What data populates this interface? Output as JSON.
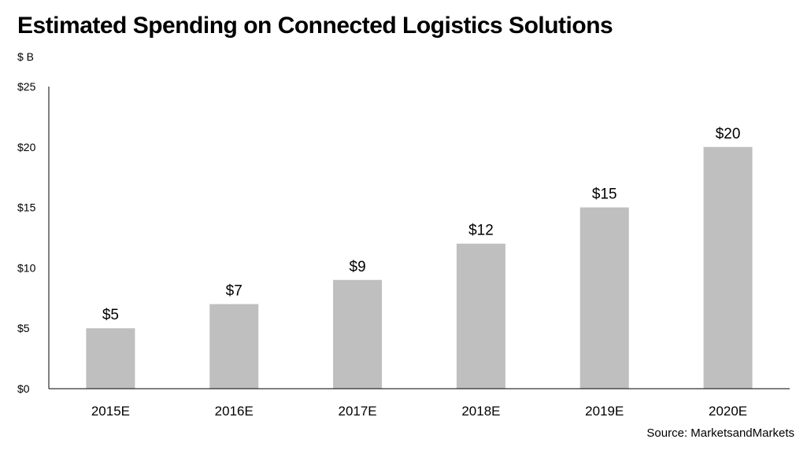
{
  "chart_data": {
    "type": "bar",
    "title": "Estimated Spending on Connected Logistics Solutions",
    "unit_label": "$ B",
    "xlabel": "",
    "ylabel": "",
    "categories": [
      "2015E",
      "2016E",
      "2017E",
      "2018E",
      "2019E",
      "2020E"
    ],
    "values": [
      5,
      7,
      9,
      12,
      15,
      20
    ],
    "data_labels": [
      "$5",
      "$7",
      "$9",
      "$12",
      "$15",
      "$20"
    ],
    "ylim": [
      0,
      25
    ],
    "y_ticks": [
      0,
      5,
      10,
      15,
      20,
      25
    ],
    "y_tick_labels": [
      "$0",
      "$5",
      "$10",
      "$15",
      "$20",
      "$25"
    ],
    "grid": false,
    "legend": "none",
    "bar_color": "#bfbfbf",
    "axis_color": "#000000",
    "source": "Source: MarketsandMarkets"
  }
}
